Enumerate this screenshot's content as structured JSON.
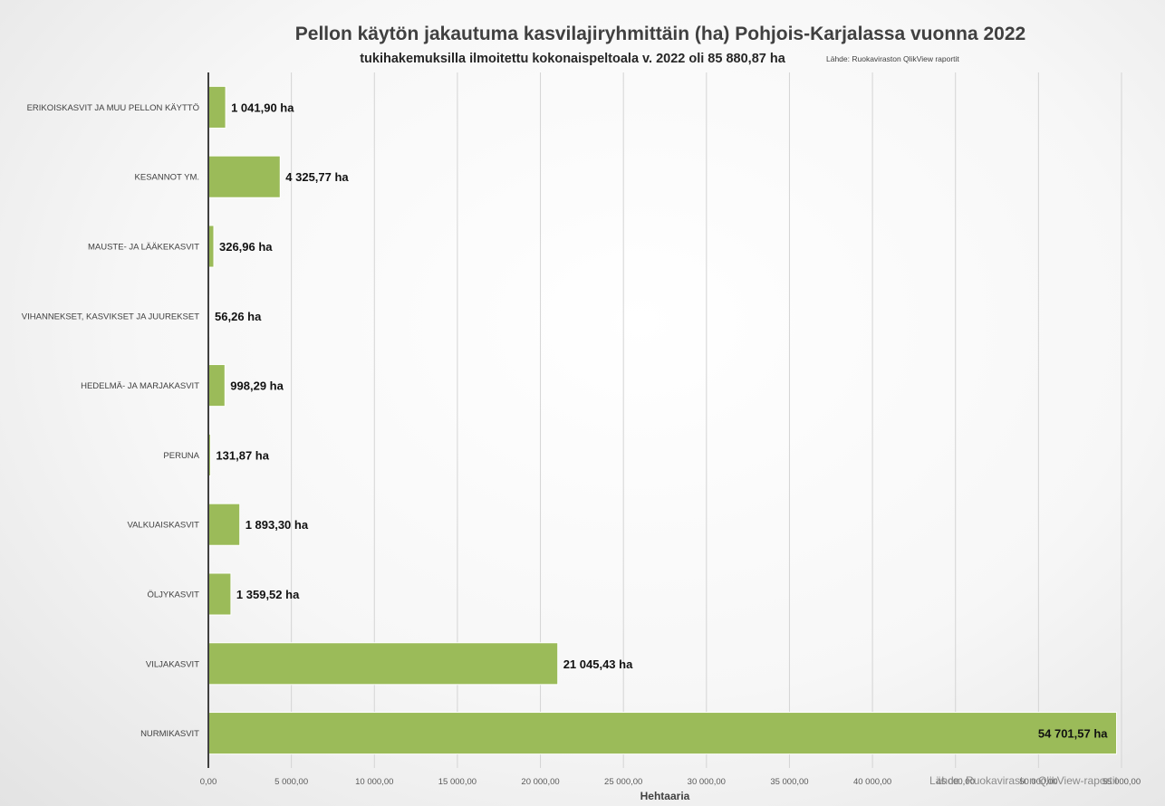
{
  "chart_data": {
    "type": "bar",
    "orientation": "horizontal",
    "title": "Pellon käytön jakautuma kasvilajiryhmittäin (ha) Pohjois-Karjalassa vuonna 2022",
    "subtitle": "tukihakemuksilla ilmoitettu kokonaispeltoala v. 2022 oli 85 880,87 ha",
    "source_note": "Lähde: Ruokaviraston QlikView raportit",
    "watermark": "Lähde: Ruokaviraston QlikView-raportit",
    "xlabel": "Hehtaaria",
    "xlim": [
      0,
      55000
    ],
    "x_ticks": [
      0,
      5000,
      10000,
      15000,
      20000,
      25000,
      30000,
      35000,
      40000,
      45000,
      50000,
      55000
    ],
    "x_tick_labels": [
      "0,00",
      "5 000,00",
      "10 000,00",
      "15 000,00",
      "20 000,00",
      "25 000,00",
      "30 000,00",
      "35 000,00",
      "40 000,00",
      "45 000,00",
      "50 000,00",
      "55 000,00"
    ],
    "grid": true,
    "bar_color": "#9bbb59",
    "categories": [
      "ERIKOISKASVIT JA MUU PELLON KÄYTTÖ",
      "KESANNOT YM.",
      "MAUSTE- JA LÄÄKEKASVIT",
      "VIHANNEKSET, KASVIKSET JA JUUREKSET",
      "HEDELMÄ- JA MARJAKASVIT",
      "PERUNA",
      "VALKUAISKASVIT",
      "ÖLJYKASVIT",
      "VILJAKASVIT",
      "NURMIKASVIT"
    ],
    "values": [
      1041.9,
      4325.77,
      326.96,
      56.26,
      998.29,
      131.87,
      1893.3,
      1359.52,
      21045.43,
      54701.57
    ],
    "value_labels": [
      "1 041,90 ha",
      "4 325,77 ha",
      "326,96 ha",
      "56,26 ha",
      "998,29 ha",
      "131,87 ha",
      "1 893,30 ha",
      "1 359,52 ha",
      "21 045,43 ha",
      "54 701,57 ha"
    ]
  }
}
